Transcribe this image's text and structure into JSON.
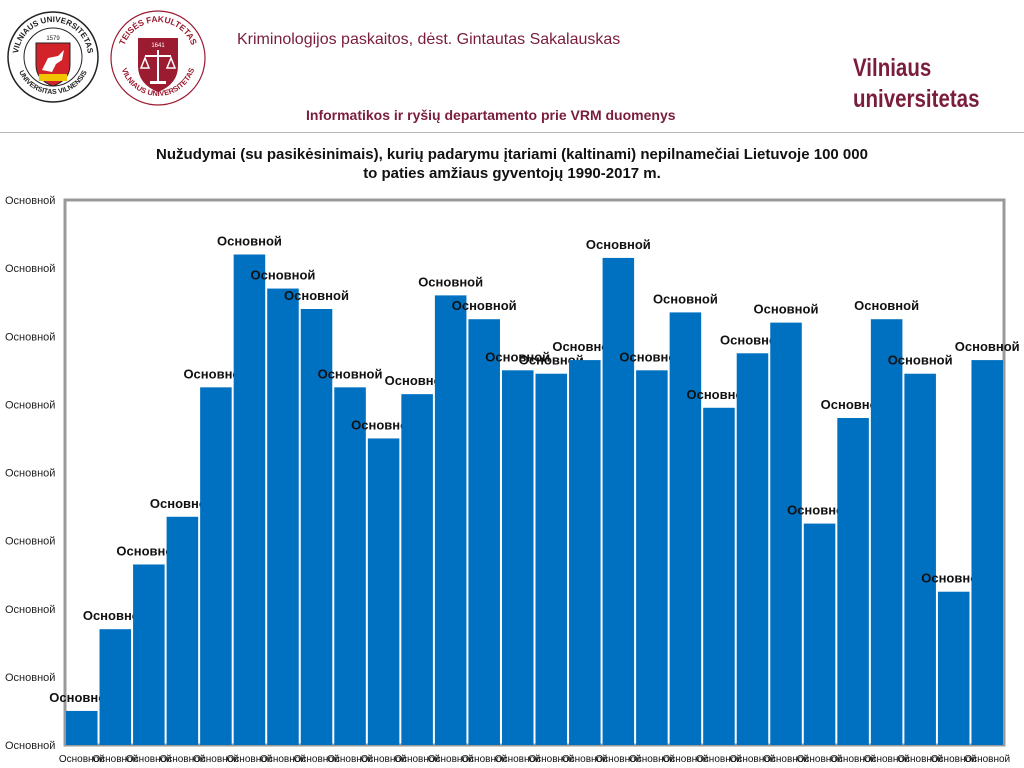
{
  "header": {
    "lecture": "Kriminologijos paskaitos, dėst. Gintautas Sakalauskas",
    "source": "Informatikos ir ryšių departamento prie VRM duomenys",
    "brand_line1": "Vilniaus",
    "brand_line2": "universitetas",
    "logo_vu": {
      "text_top": "VILNIAUS UNIVERSITETAS",
      "text_bottom": "UNIVERSITAS VILNENSIS",
      "year": "1579"
    },
    "logo_tf": {
      "text_top": "TEISĖS FAKULTETAS",
      "text_bottom": "VILNIAUS UNIVERSITETAS",
      "year": "1641"
    },
    "colors": {
      "accent": "#7a1d3b",
      "vu_shield": "#d2232a",
      "tf_shield": "#9b1b30"
    }
  },
  "chart_data": {
    "type": "bar",
    "title_line1": "Nužudymai (su pasikėsinimais), kurių padarymu įtariami (kaltinami) nepilnamečiai Lietuvoje 100 000",
    "title_line2": "to paties amžiaus gyventojų 1990-2017 m.",
    "categories": [
      "Основной",
      "Основной",
      "Основной",
      "Основной",
      "Основной",
      "Основной",
      "Основной",
      "Основной",
      "Основной",
      "Основной",
      "Основной",
      "Основной",
      "Основной",
      "Основной",
      "Основной",
      "Основной",
      "Основной",
      "Основной",
      "Основной",
      "Основной",
      "Основной",
      "Основной",
      "Основной",
      "Основной",
      "Основной",
      "Основной",
      "Основной",
      "Основной"
    ],
    "values": [
      5,
      17,
      26.5,
      33.5,
      52.5,
      72,
      67,
      64,
      52.5,
      45,
      51.5,
      66,
      62.5,
      55,
      54.5,
      56.5,
      71.5,
      55,
      63.5,
      49.5,
      57.5,
      62,
      32.5,
      48,
      62.5,
      54.5,
      22.5,
      56.5
    ],
    "data_labels": [
      "Основной",
      "Основной",
      "Основной",
      "Основной",
      "Основной",
      "Основной",
      "Основной",
      "Основной",
      "Основной",
      "Основной",
      "Основной",
      "Основной",
      "Основной",
      "Основной",
      "Основной",
      "Основной",
      "Основной",
      "Основной",
      "Основной",
      "Основной",
      "Основной",
      "Основной",
      "Основной",
      "Основной",
      "Основной",
      "Основной",
      "Основной",
      "Основной"
    ],
    "y_ticks": [
      0,
      10,
      20,
      30,
      40,
      50,
      60,
      70,
      80
    ],
    "y_tick_labels": [
      "Основной",
      "Основной",
      "Основной",
      "Основной",
      "Основной",
      "Основной",
      "Основной",
      "Основной",
      "Основной"
    ],
    "ylim": [
      0,
      80
    ],
    "grid": false,
    "bar_color": "#0070c0",
    "frame_color": "#999999"
  }
}
